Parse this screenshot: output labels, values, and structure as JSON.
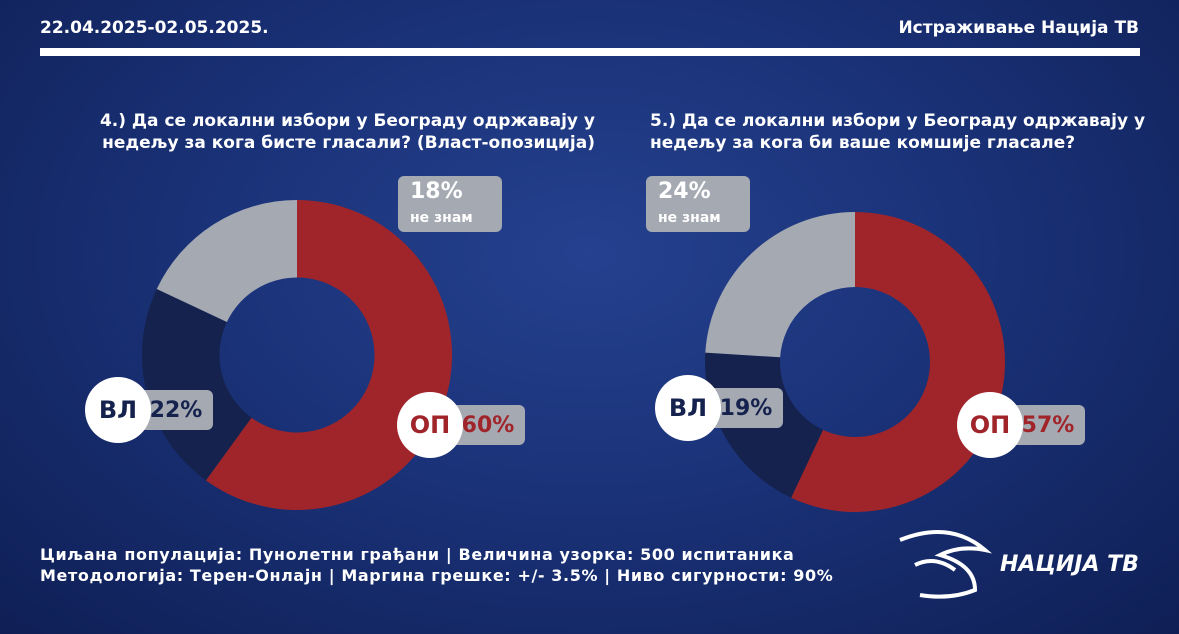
{
  "header": {
    "date": "22.04.2025-02.05.2025.",
    "brand": "Истраживање Нација ТВ"
  },
  "chart_data": [
    {
      "type": "pie",
      "donut": true,
      "title": "4.) Да се локални избори у Београду одржавају у недељу за кога бисте гласали? (Власт-опозиција)",
      "categories": [
        "ОП",
        "ВЛ",
        "не знам"
      ],
      "values": [
        60,
        22,
        18
      ],
      "value_labels": [
        "60%",
        "22%",
        "18%"
      ],
      "colors": [
        "#a0252a",
        "#15224d",
        "#a5a9b2"
      ]
    },
    {
      "type": "pie",
      "donut": true,
      "title": "5.) Да се локални избори у Београду одржавају у недељу за кога би ваше комшије гласале?",
      "categories": [
        "ОП",
        "ВЛ",
        "не знам"
      ],
      "values": [
        57,
        19,
        24
      ],
      "value_labels": [
        "57%",
        "19%",
        "24%"
      ],
      "colors": [
        "#a0252a",
        "#15224d",
        "#a5a9b2"
      ]
    }
  ],
  "footer": [
    "Циљана популација: Пунолетни грађани | Величина узорка: 500 испитаника",
    "Методологија: Терен-Онлајн | Маргина грешке: +/- 3.5% | Ниво сигурности: 90%"
  ],
  "logo": "НАЦИЈА ТВ"
}
